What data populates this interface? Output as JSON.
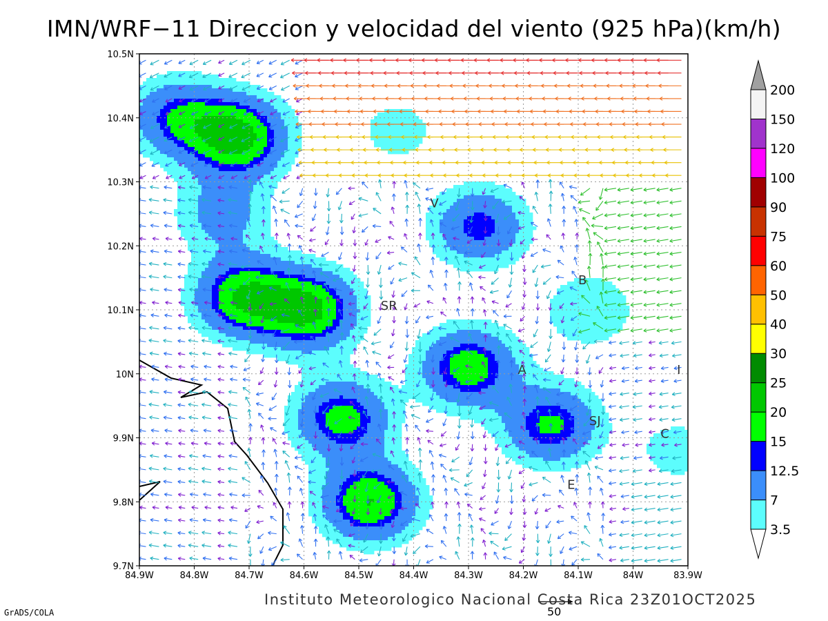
{
  "title": "IMN/WRF−11 Direccion y velocidad del viento (925 hPa)(km/h)",
  "footer": "Instituto Meteorologico Nacional Costa Rica 23Z01OCT2025",
  "software_label": "GrADS/COLA",
  "reference_vector_label": "50",
  "lon_labels": [
    "84.9W",
    "84.8W",
    "84.7W",
    "84.6W",
    "84.5W",
    "84.4W",
    "84.3W",
    "84.2W",
    "84.1W",
    "84W",
    "83.9W"
  ],
  "lat_labels": [
    "9.7N",
    "9.8N",
    "9.9N",
    "10N",
    "10.1N",
    "10.2N",
    "10.3N",
    "10.4N",
    "10.5N"
  ],
  "stations": [
    {
      "label": "V",
      "lon": -84.37,
      "lat": 10.26
    },
    {
      "label": "B",
      "lon": -84.1,
      "lat": 10.14
    },
    {
      "label": "SR",
      "lon": -84.46,
      "lat": 10.1
    },
    {
      "label": "A",
      "lon": -84.21,
      "lat": 10.0
    },
    {
      "label": "I",
      "lon": -83.92,
      "lat": 10.0
    },
    {
      "label": "SJ",
      "lon": -84.08,
      "lat": 9.92
    },
    {
      "label": "C",
      "lon": -83.95,
      "lat": 9.9
    },
    {
      "label": "E",
      "lon": -84.12,
      "lat": 9.82
    }
  ],
  "colorbar": {
    "labels": [
      "3.5",
      "7",
      "12.5",
      "15",
      "20",
      "25",
      "30",
      "40",
      "50",
      "60",
      "75",
      "90",
      "100",
      "120",
      "150",
      "200"
    ],
    "colors": [
      "#ffffff",
      "#5cfdfd",
      "#3b8efa",
      "#0000ff",
      "#00ff00",
      "#00c700",
      "#008b00",
      "#ffff00",
      "#ffc000",
      "#ff6400",
      "#ff0000",
      "#c83200",
      "#a00000",
      "#ff00ff",
      "#a033cc",
      "#f4f4f4",
      "#a0a0a0"
    ]
  },
  "chart_data": {
    "type": "heatmap",
    "title": "IMN/WRF−11 Direccion y velocidad del viento (925 hPa)(km/h)",
    "xlim": [
      -84.9,
      -83.9
    ],
    "ylim": [
      9.7,
      10.5
    ],
    "wind_speed_blobs": [
      {
        "lon": -84.72,
        "lat": 10.37,
        "peak": 22
      },
      {
        "lon": -84.83,
        "lat": 10.4,
        "peak": 14
      },
      {
        "lon": -84.59,
        "lat": 10.1,
        "peak": 21
      },
      {
        "lon": -84.71,
        "lat": 10.12,
        "peak": 20
      },
      {
        "lon": -84.75,
        "lat": 10.25,
        "peak": 9
      },
      {
        "lon": -84.28,
        "lat": 10.23,
        "peak": 14
      },
      {
        "lon": -84.3,
        "lat": 10.01,
        "peak": 18
      },
      {
        "lon": -84.15,
        "lat": 9.92,
        "peak": 16
      },
      {
        "lon": -84.53,
        "lat": 9.93,
        "peak": 17
      },
      {
        "lon": -84.48,
        "lat": 9.8,
        "peak": 20
      },
      {
        "lon": -84.43,
        "lat": 10.38,
        "peak": 5
      },
      {
        "lon": -84.08,
        "lat": 10.1,
        "peak": 7
      },
      {
        "lon": -83.92,
        "lat": 9.88,
        "peak": 5
      }
    ],
    "wind_regimes": [
      {
        "region": "north",
        "direction": "westward",
        "speed_kmh": 45
      },
      {
        "region": "east",
        "direction": "westward",
        "speed_kmh": 25
      },
      {
        "region": "central",
        "direction": "variable",
        "speed_kmh": 10
      }
    ]
  }
}
